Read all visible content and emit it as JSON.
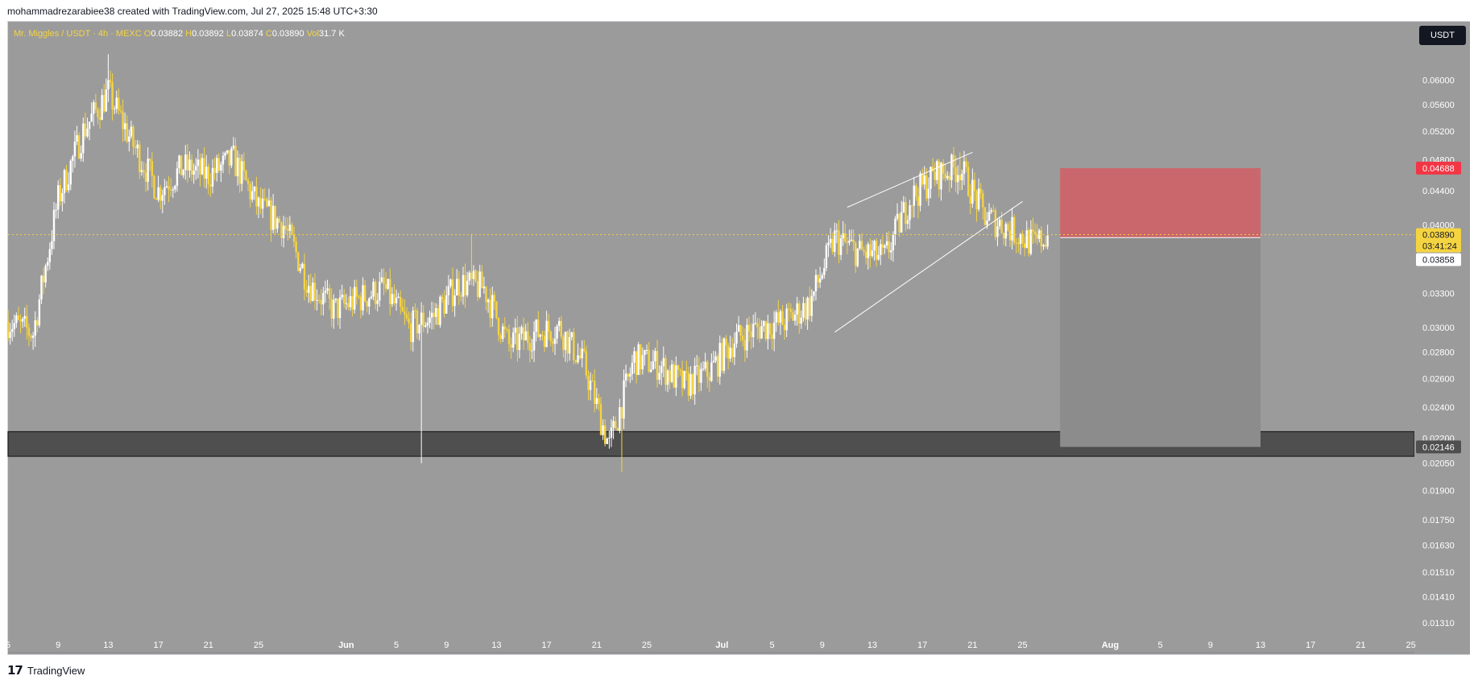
{
  "attribution": "mohammadrezarabiee38 created with TradingView.com, Jul 27, 2025 15:48 UTC+3:30",
  "footer": {
    "brand": "TradingView"
  },
  "header": {
    "symbol": "Mr. Miggles / USDT · 4h · MEXC",
    "open_label": "O",
    "open": "0.03882",
    "high_label": "H",
    "high": "0.03892",
    "low_label": "L",
    "low": "0.03874",
    "close_label": "C",
    "close": "0.03890",
    "vol_label": "Vol",
    "vol": "31.7 K"
  },
  "currency": "USDT",
  "colors": {
    "background": "#9b9b9b",
    "candle": "#f5d442",
    "candle_alt": "#ffffff",
    "stop_zone": "#c9676c",
    "target_zone": "#8c8c8c",
    "support_band": "#4f4f4f",
    "last_price_bg": "#f5d442",
    "stop_badge": "#f23645"
  },
  "price_axis": {
    "ticks": [
      "0.06000",
      "0.05600",
      "0.05200",
      "0.04800",
      "0.04400",
      "0.04000",
      "0.03300",
      "0.03000",
      "0.02800",
      "0.02600",
      "0.02400",
      "0.02200",
      "0.02050",
      "0.01900",
      "0.01750",
      "0.01630",
      "0.01510",
      "0.01410",
      "0.01310"
    ],
    "stop_badge": "0.04688",
    "last_price": "0.03890",
    "countdown": "03:41:24",
    "entry_badge": "0.03858",
    "target_badge": "0.02146"
  },
  "time_axis": {
    "ticks": [
      "5",
      "9",
      "13",
      "17",
      "21",
      "25",
      "Jun",
      "5",
      "9",
      "13",
      "17",
      "21",
      "25",
      "Jul",
      "5",
      "9",
      "13",
      "17",
      "21",
      "25",
      "Aug",
      "5",
      "9",
      "13",
      "17",
      "21",
      "25"
    ]
  },
  "chart_data": {
    "type": "candlestick",
    "symbol": "Mr. Miggles / USDT",
    "interval": "4h",
    "exchange": "MEXC",
    "y_scale": "log",
    "ylim": [
      0.0125,
      0.068
    ],
    "last": {
      "open": 0.03882,
      "high": 0.03892,
      "low": 0.03874,
      "close": 0.0389,
      "volume": "31.7 K"
    },
    "price_path": [
      {
        "date": "2025-05-05",
        "close": 0.0305
      },
      {
        "date": "2025-05-07",
        "close": 0.0295
      },
      {
        "date": "2025-05-09",
        "close": 0.043
      },
      {
        "date": "2025-05-11",
        "close": 0.052
      },
      {
        "date": "2025-05-13",
        "close": 0.058
      },
      {
        "date": "2025-05-15",
        "close": 0.05
      },
      {
        "date": "2025-05-17",
        "close": 0.044
      },
      {
        "date": "2025-05-19",
        "close": 0.047
      },
      {
        "date": "2025-05-21",
        "close": 0.046
      },
      {
        "date": "2025-05-23",
        "close": 0.048
      },
      {
        "date": "2025-05-25",
        "close": 0.042
      },
      {
        "date": "2025-05-27",
        "close": 0.04
      },
      {
        "date": "2025-05-29",
        "close": 0.034
      },
      {
        "date": "2025-05-31",
        "close": 0.0315
      },
      {
        "date": "2025-06-02",
        "close": 0.0325
      },
      {
        "date": "2025-06-04",
        "close": 0.0335
      },
      {
        "date": "2025-06-06",
        "close": 0.03
      },
      {
        "date": "2025-06-08",
        "close": 0.031
      },
      {
        "date": "2025-06-10",
        "close": 0.034
      },
      {
        "date": "2025-06-12",
        "close": 0.0335
      },
      {
        "date": "2025-06-14",
        "close": 0.0285
      },
      {
        "date": "2025-06-16",
        "close": 0.0295
      },
      {
        "date": "2025-06-18",
        "close": 0.03
      },
      {
        "date": "2025-06-20",
        "close": 0.027
      },
      {
        "date": "2025-06-22",
        "close": 0.0215
      },
      {
        "date": "2025-06-24",
        "close": 0.0275
      },
      {
        "date": "2025-06-26",
        "close": 0.027
      },
      {
        "date": "2025-06-28",
        "close": 0.0255
      },
      {
        "date": "2025-06-30",
        "close": 0.0265
      },
      {
        "date": "2025-07-02",
        "close": 0.029
      },
      {
        "date": "2025-07-04",
        "close": 0.03
      },
      {
        "date": "2025-07-06",
        "close": 0.0305
      },
      {
        "date": "2025-07-08",
        "close": 0.032
      },
      {
        "date": "2025-07-10",
        "close": 0.0385
      },
      {
        "date": "2025-07-12",
        "close": 0.037
      },
      {
        "date": "2025-07-14",
        "close": 0.0365
      },
      {
        "date": "2025-07-16",
        "close": 0.043
      },
      {
        "date": "2025-07-18",
        "close": 0.046
      },
      {
        "date": "2025-07-20",
        "close": 0.047
      },
      {
        "date": "2025-07-22",
        "close": 0.041
      },
      {
        "date": "2025-07-24",
        "close": 0.0395
      },
      {
        "date": "2025-07-26",
        "close": 0.0378
      },
      {
        "date": "2025-07-27",
        "close": 0.0389
      }
    ],
    "channel": {
      "upper": [
        [
          "2025-07-11",
          0.042
        ],
        [
          "2025-07-21",
          0.049
        ]
      ],
      "lower": [
        [
          "2025-07-10",
          0.0296
        ],
        [
          "2025-07-25",
          0.0427
        ]
      ]
    },
    "support_zone": [
      0.0209,
      0.0224
    ],
    "short_position": {
      "entry": 0.03858,
      "stop": 0.04688,
      "target": 0.02146
    }
  }
}
